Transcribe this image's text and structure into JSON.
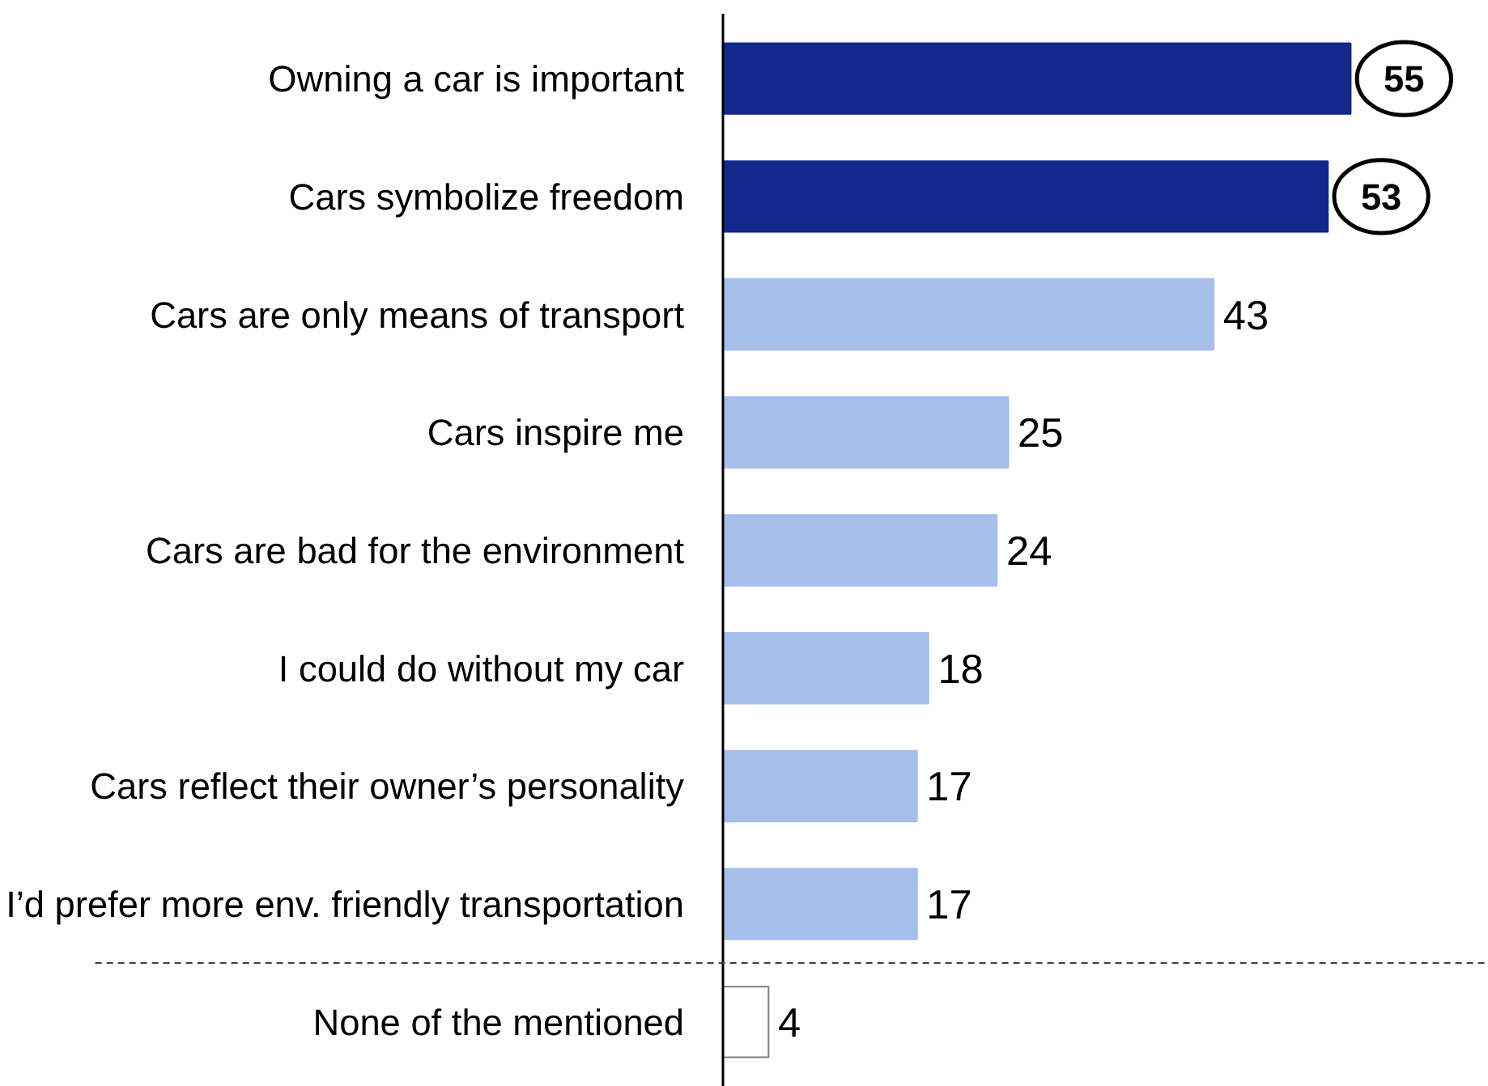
{
  "chart_data": {
    "type": "bar",
    "orientation": "horizontal",
    "categories": [
      "Owning a car is important",
      "Cars symbolize freedom",
      "Cars are only means of transport",
      "Cars inspire me",
      "Cars are bad for the environment",
      "I could do without my car",
      "Cars reflect their owner’s personality",
      "I’d prefer more env. friendly transportation",
      "None of the mentioned"
    ],
    "values": [
      55,
      53,
      43,
      25,
      24,
      18,
      17,
      17,
      4
    ],
    "colors": [
      "#13288a",
      "#13288a",
      "#a6bfea",
      "#a6bfea",
      "#a6bfea",
      "#a6bfea",
      "#a6bfea",
      "#a6bfea",
      "#ffffff"
    ],
    "data_labels": true,
    "ref_lines": [
      {
        "axis": "y",
        "value": "I’d prefer more env. friendly transportation",
        "line_style": "dashed",
        "color": "#404040"
      }
    ]
  }
}
